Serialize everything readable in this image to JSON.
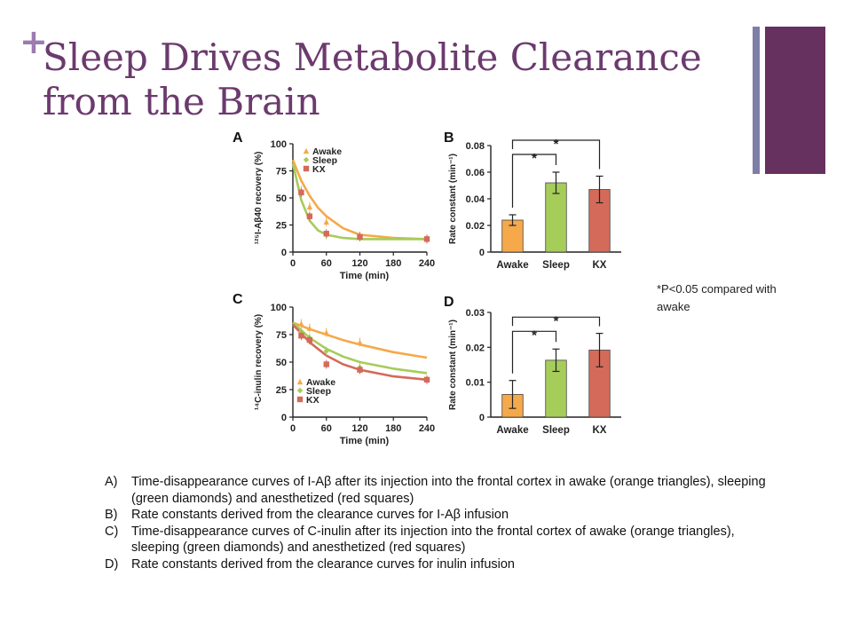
{
  "slide": {
    "plus_glyph": "+",
    "title": "Sleep Drives Metabolite Clearance from the Brain",
    "note": "*P<0.05 compared with awake",
    "caption": [
      {
        "label": "A)",
        "text": "Time-disappearance curves of I-Aβ after its injection into the frontal cortex in awake (orange triangles), sleeping (green diamonds) and anesthetized (red squares)"
      },
      {
        "label": "B)",
        "text": "Rate constants derived from the clearance curves for I-Aβ infusion"
      },
      {
        "label": "C)",
        "text": "Time-disappearance curves of C-inulin after its injection into the frontal cortex of awake (orange triangles), sleeping (green diamonds) and anesthetized (red squares)"
      },
      {
        "label": "D)",
        "text": "Rate constants derived from the clearance curves for inulin infusion"
      }
    ],
    "colors": {
      "title": "#6b3a6e",
      "plus": "#9b7bb0",
      "awake": "#f5a94a",
      "sleep": "#a6cc5a",
      "kx": "#d46a5a"
    }
  },
  "chart_data": [
    {
      "panel": "A",
      "type": "line",
      "xlabel": "Time (min)",
      "ylabel": "¹²⁵I-Aβ40 recovery (%)",
      "xticks": [
        0,
        60,
        120,
        180,
        240
      ],
      "yticks": [
        0,
        25,
        50,
        75,
        100
      ],
      "xlim": [
        0,
        240
      ],
      "ylim": [
        0,
        100
      ],
      "legend": "top-right",
      "series": [
        {
          "name": "Awake",
          "color": "#f5a94a",
          "marker": "triangle",
          "curve": {
            "x": [
              0,
              15,
              30,
              45,
              60,
              90,
              120,
              180,
              240
            ],
            "y": [
              85,
              66,
              52,
              41,
              33,
              22,
              16,
              13,
              12
            ]
          },
          "points": {
            "x": [
              15,
              30,
              60,
              120,
              240
            ],
            "y": [
              57,
              42,
              28,
              15,
              12
            ]
          }
        },
        {
          "name": "Sleep",
          "color": "#a6cc5a",
          "marker": "diamond",
          "curve": {
            "x": [
              0,
              15,
              30,
              45,
              60,
              90,
              120,
              180,
              240
            ],
            "y": [
              82,
              48,
              29,
              20,
              16,
              13,
              12,
              12,
              12
            ]
          },
          "points": {
            "x": [
              15,
              30,
              60,
              120,
              240
            ],
            "y": [
              54,
              33,
              16,
              14,
              12
            ]
          }
        },
        {
          "name": "KX",
          "color": "#d46a5a",
          "marker": "square",
          "points": {
            "x": [
              15,
              30,
              60,
              120,
              240
            ],
            "y": [
              55,
              33,
              17,
              14,
              12
            ]
          }
        }
      ]
    },
    {
      "panel": "B",
      "type": "bar",
      "ylabel": "Rate constant (min⁻¹)",
      "categories": [
        "Awake",
        "Sleep",
        "KX"
      ],
      "values": [
        0.024,
        0.052,
        0.047
      ],
      "errors": [
        0.004,
        0.008,
        0.01
      ],
      "colors": [
        "#f5a94a",
        "#a6cc5a",
        "#d46a5a"
      ],
      "yticks": [
        0,
        0.02,
        0.04,
        0.06,
        0.08
      ],
      "ylim": [
        0,
        0.08
      ],
      "significance": [
        "*",
        "*"
      ]
    },
    {
      "panel": "C",
      "type": "line",
      "xlabel": "Time (min)",
      "ylabel": "¹⁴C-inulin recovery (%)",
      "xticks": [
        0,
        60,
        120,
        180,
        240
      ],
      "yticks": [
        0,
        25,
        50,
        75,
        100
      ],
      "xlim": [
        0,
        240
      ],
      "ylim": [
        0,
        100
      ],
      "legend": "bottom-left",
      "series": [
        {
          "name": "Awake",
          "color": "#f5a94a",
          "marker": "triangle",
          "curve": {
            "x": [
              0,
              30,
              60,
              90,
              120,
              180,
              240
            ],
            "y": [
              86,
              80,
              75,
              70,
              66,
              59,
              54
            ]
          },
          "points": {
            "x": [
              15,
              30,
              60,
              120
            ],
            "y": [
              85,
              81,
              77,
              68
            ]
          }
        },
        {
          "name": "Sleep",
          "color": "#a6cc5a",
          "marker": "diamond",
          "curve": {
            "x": [
              0,
              30,
              60,
              90,
              120,
              180,
              240
            ],
            "y": [
              86,
              72,
              62,
              55,
              50,
              44,
              40
            ]
          },
          "points": {
            "x": [
              15,
              30,
              60,
              120
            ],
            "y": [
              78,
              72,
              60,
              45
            ]
          }
        },
        {
          "name": "KX",
          "color": "#d46a5a",
          "marker": "square",
          "curve": {
            "x": [
              0,
              30,
              60,
              90,
              120,
              180,
              240
            ],
            "y": [
              84,
              68,
              56,
              48,
              43,
              37,
              34
            ]
          },
          "points": {
            "x": [
              15,
              30,
              60,
              120,
              240
            ],
            "y": [
              74,
              70,
              48,
              43,
              34
            ]
          }
        }
      ]
    },
    {
      "panel": "D",
      "type": "bar",
      "ylabel": "Rate constant (min⁻¹)",
      "categories": [
        "Awake",
        "Sleep",
        "KX"
      ],
      "values": [
        0.0065,
        0.0163,
        0.0192
      ],
      "errors": [
        0.004,
        0.0032,
        0.0048
      ],
      "colors": [
        "#f5a94a",
        "#a6cc5a",
        "#d46a5a"
      ],
      "yticks": [
        0,
        0.01,
        0.02,
        0.03
      ],
      "ylim": [
        0,
        0.03
      ],
      "significance": [
        "*",
        "*"
      ]
    }
  ]
}
